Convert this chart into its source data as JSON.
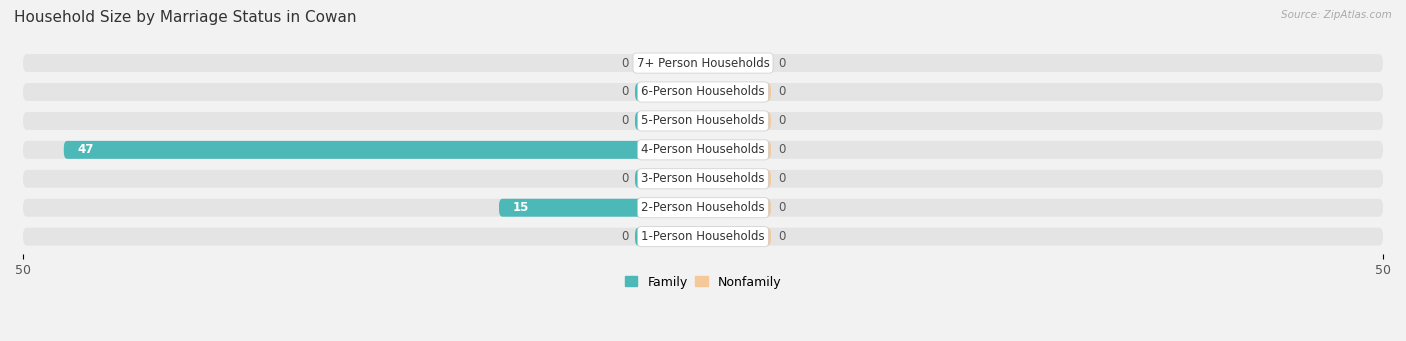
{
  "title": "Household Size by Marriage Status in Cowan",
  "source": "Source: ZipAtlas.com",
  "categories": [
    "7+ Person Households",
    "6-Person Households",
    "5-Person Households",
    "4-Person Households",
    "3-Person Households",
    "2-Person Households",
    "1-Person Households"
  ],
  "family_values": [
    0,
    0,
    0,
    47,
    0,
    15,
    0
  ],
  "nonfamily_values": [
    0,
    0,
    0,
    0,
    0,
    0,
    0
  ],
  "family_color": "#4db8b8",
  "nonfamily_color": "#f5c89a",
  "family_stub": 5,
  "nonfamily_stub": 5,
  "xlim": 50,
  "background_color": "#f2f2f2",
  "bar_bg_color": "#e4e4e4",
  "bar_height": 0.62,
  "label_fontsize": 8.5,
  "title_fontsize": 11
}
